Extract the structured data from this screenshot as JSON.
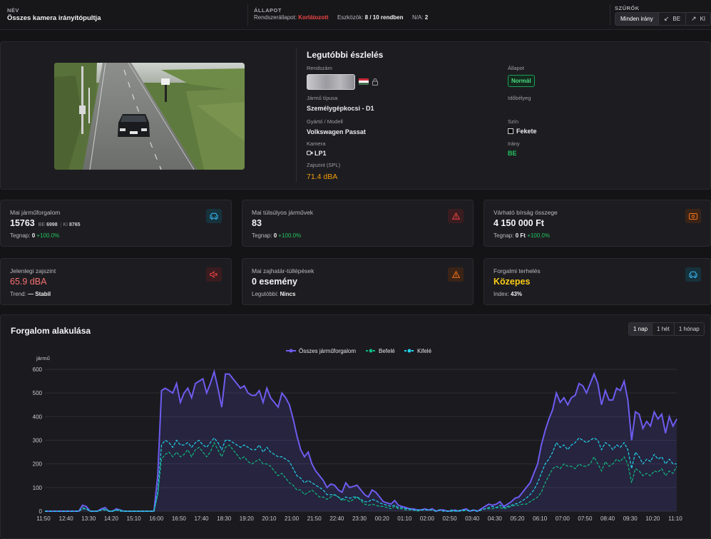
{
  "topbar": {
    "name_label": "NÉV",
    "name_value": "Összes kamera irányítópultja",
    "state_label": "ÁLLAPOT",
    "system_state_label": "Rendszerállapot:",
    "system_state_value": "Korlátozott",
    "devices_label": "Eszközök:",
    "devices_value": "8 / 10 rendben",
    "na_label": "N/A:",
    "na_value": "2",
    "filters_label": "SZŰRŐK",
    "filters": [
      {
        "label": "Minden irány",
        "arrow": "",
        "active": true
      },
      {
        "label": "BE",
        "arrow": "↙",
        "active": false
      },
      {
        "label": "KI",
        "arrow": "↗",
        "active": false
      }
    ]
  },
  "detection": {
    "title": "Legutóbbi észlelés",
    "plate_label": "Rendszám",
    "type_label": "Jármű típusa",
    "type_value": "Személygépkocsi - D1",
    "model_label": "Gyártó / Modell",
    "model_value": "Volkswagen Passat",
    "camera_label": "Kamera",
    "camera_value": "LP1",
    "noise_label": "Zajszint (SPL)",
    "noise_value": "71.4 dBA",
    "status_label": "Állapot",
    "status_value": "Normál",
    "timestamp_label": "Időbélyeg",
    "color_label": "Szín",
    "color_value": "Fekete",
    "direction_label": "Irány",
    "direction_value": "BE"
  },
  "cards": [
    {
      "title": "Mai járműforgalom",
      "value": "15763",
      "in_label": "BE",
      "in_value": "6998",
      "out_label": "KI",
      "out_value": "8765",
      "sub_label": "Tegnap:",
      "sub_value": "0",
      "change": "+100.0%",
      "icon": "car-icon",
      "icon_color": "#38bdf8"
    },
    {
      "title": "Mai túlsúlyos járművek",
      "value": "83",
      "sub_label": "Tegnap:",
      "sub_value": "0",
      "change": "+100.0%",
      "icon": "warning-icon",
      "icon_color": "#ef4444"
    },
    {
      "title": "Várható bírság összege",
      "value": "4 150 000 Ft",
      "sub_label": "Tegnap:",
      "sub_value": "0 Ft",
      "change": "+100.0%",
      "icon": "money-icon",
      "icon_color": "#f97316"
    },
    {
      "title": "Jelenlegi zajszint",
      "value": "65.9 dBA",
      "value_color": "#f87171",
      "sub_label": "Trend:",
      "sub_value": "— Stabil",
      "icon": "speaker-icon",
      "icon_color": "#ef4444"
    },
    {
      "title": "Mai zajhatár-túllépések",
      "value": "0 esemény",
      "sub_label": "Legutóbbi:",
      "sub_value": "Nincs",
      "icon": "warning-icon",
      "icon_color": "#f97316"
    },
    {
      "title": "Forgalmi terhelés",
      "value": "Közepes",
      "value_color": "#facc15",
      "sub_label": "Index:",
      "sub_value": "43%",
      "icon": "car-icon",
      "icon_color": "#38bdf8"
    }
  ],
  "chart": {
    "title": "Forgalom alakulása",
    "ranges": [
      {
        "label": "1 nap",
        "active": true
      },
      {
        "label": "1 hét",
        "active": false
      },
      {
        "label": "1 hónap",
        "active": false
      }
    ]
  },
  "chart_data": {
    "type": "line",
    "ylabel": "jármű",
    "ylim": [
      0,
      600
    ],
    "yticks": [
      0,
      100,
      200,
      300,
      400,
      500,
      600
    ],
    "grid": true,
    "legend_position": "top-center",
    "xtick_labels": [
      "11:50",
      "12:40",
      "13:30",
      "14:20",
      "15:10",
      "16:00",
      "16:50",
      "17:40",
      "18:30",
      "19:20",
      "20:10",
      "21:00",
      "21:50",
      "22:40",
      "23:30",
      "00:20",
      "01:10",
      "02:00",
      "02:50",
      "03:40",
      "04:30",
      "05:20",
      "06:10",
      "07:00",
      "07:50",
      "08:40",
      "09:30",
      "10:20",
      "11:10"
    ],
    "series": [
      {
        "name": "Összes járműforgalom",
        "color": "#6d5cf0",
        "style": "solid",
        "values": [
          0,
          0,
          0,
          0,
          0,
          0,
          0,
          0,
          0,
          0,
          25,
          20,
          0,
          0,
          0,
          10,
          15,
          0,
          0,
          10,
          5,
          0,
          0,
          0,
          0,
          0,
          0,
          0,
          0,
          0,
          150,
          510,
          520,
          510,
          500,
          540,
          460,
          500,
          520,
          480,
          540,
          550,
          560,
          500,
          540,
          590,
          520,
          440,
          580,
          580,
          560,
          540,
          520,
          530,
          500,
          490,
          490,
          510,
          460,
          520,
          480,
          460,
          440,
          500,
          480,
          450,
          390,
          320,
          260,
          230,
          250,
          200,
          170,
          150,
          130,
          100,
          115,
          110,
          90,
          80,
          120,
          100,
          105,
          110,
          90,
          70,
          60,
          90,
          80,
          60,
          40,
          35,
          30,
          45,
          25,
          20,
          15,
          10,
          10,
          5,
          5,
          10,
          5,
          10,
          0,
          5,
          5,
          0,
          0,
          5,
          0,
          5,
          10,
          0,
          5,
          0,
          10,
          20,
          30,
          25,
          30,
          40,
          20,
          30,
          40,
          55,
          60,
          80,
          100,
          120,
          160,
          200,
          280,
          340,
          390,
          430,
          500,
          460,
          480,
          450,
          480,
          490,
          540,
          530,
          500,
          540,
          580,
          540,
          450,
          510,
          470,
          470,
          520,
          510,
          550,
          470,
          300,
          420,
          410,
          350,
          380,
          360,
          420,
          390,
          410,
          330,
          400,
          360,
          390
        ]
      },
      {
        "name": "Befelé",
        "color": "#10b981",
        "style": "dashed",
        "values": [
          0,
          0,
          0,
          0,
          0,
          0,
          0,
          0,
          0,
          0,
          15,
          10,
          0,
          0,
          0,
          5,
          10,
          0,
          0,
          5,
          5,
          0,
          0,
          0,
          0,
          0,
          0,
          0,
          0,
          0,
          70,
          220,
          240,
          250,
          230,
          250,
          230,
          240,
          260,
          230,
          260,
          270,
          250,
          230,
          250,
          290,
          260,
          230,
          270,
          280,
          260,
          240,
          220,
          230,
          210,
          200,
          210,
          220,
          200,
          200,
          190,
          170,
          150,
          160,
          140,
          120,
          110,
          90,
          90,
          70,
          80,
          90,
          75,
          60,
          60,
          50,
          60,
          70,
          60,
          45,
          50,
          40,
          50,
          60,
          45,
          30,
          25,
          30,
          25,
          20,
          20,
          15,
          10,
          20,
          10,
          10,
          5,
          5,
          5,
          0,
          5,
          5,
          5,
          5,
          0,
          5,
          0,
          0,
          0,
          0,
          5,
          0,
          5,
          0,
          5,
          0,
          5,
          10,
          10,
          10,
          15,
          15,
          10,
          15,
          20,
          25,
          25,
          30,
          30,
          40,
          50,
          60,
          80,
          120,
          150,
          180,
          190,
          180,
          200,
          190,
          190,
          180,
          200,
          190,
          190,
          200,
          230,
          200,
          170,
          210,
          190,
          200,
          220,
          210,
          230,
          200,
          120,
          180,
          170,
          150,
          160,
          150,
          170,
          165,
          180,
          150,
          170,
          160,
          190
        ]
      },
      {
        "name": "Kifelé",
        "color": "#22d3ee",
        "style": "dashed",
        "values": [
          0,
          0,
          0,
          0,
          0,
          0,
          0,
          0,
          0,
          0,
          10,
          10,
          0,
          0,
          0,
          5,
          5,
          0,
          0,
          5,
          0,
          0,
          0,
          0,
          0,
          0,
          0,
          0,
          0,
          0,
          80,
          280,
          300,
          290,
          270,
          300,
          280,
          280,
          290,
          270,
          290,
          300,
          280,
          270,
          290,
          310,
          290,
          260,
          300,
          300,
          290,
          280,
          270,
          280,
          270,
          260,
          260,
          280,
          250,
          270,
          250,
          240,
          230,
          230,
          220,
          210,
          180,
          150,
          140,
          120,
          130,
          120,
          110,
          100,
          90,
          70,
          70,
          70,
          60,
          50,
          60,
          55,
          60,
          60,
          50,
          40,
          40,
          50,
          45,
          35,
          30,
          25,
          20,
          25,
          15,
          15,
          10,
          10,
          5,
          5,
          5,
          5,
          5,
          5,
          0,
          5,
          0,
          0,
          5,
          0,
          0,
          5,
          5,
          0,
          5,
          0,
          5,
          10,
          15,
          20,
          15,
          25,
          15,
          20,
          25,
          30,
          35,
          45,
          55,
          70,
          90,
          120,
          160,
          200,
          220,
          250,
          290,
          270,
          280,
          260,
          280,
          290,
          310,
          300,
          290,
          300,
          310,
          300,
          260,
          290,
          280,
          260,
          280,
          270,
          290,
          260,
          180,
          250,
          230,
          200,
          220,
          210,
          240,
          220,
          230,
          200,
          220,
          200,
          200
        ]
      }
    ]
  }
}
